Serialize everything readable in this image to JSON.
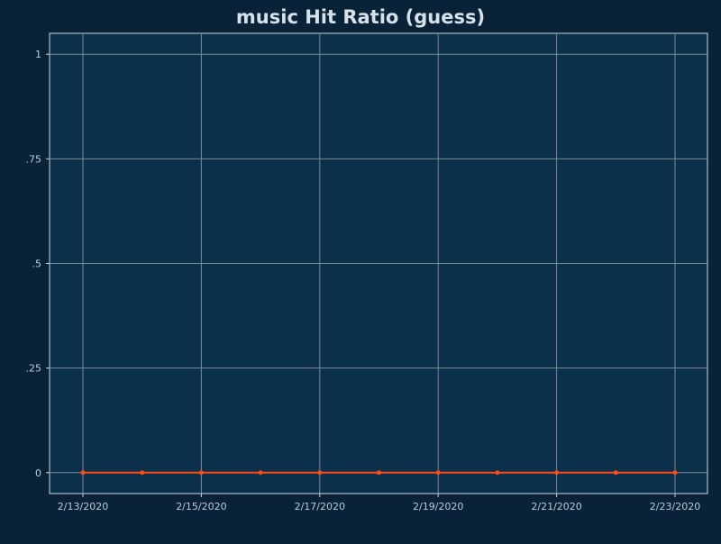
{
  "chart_data": {
    "type": "line",
    "title": "music Hit Ratio (guess)",
    "xlabel": "",
    "ylabel": "",
    "x": [
      "2/13/2020",
      "2/14/2020",
      "2/15/2020",
      "2/16/2020",
      "2/17/2020",
      "2/18/2020",
      "2/19/2020",
      "2/20/2020",
      "2/21/2020",
      "2/22/2020",
      "2/23/2020"
    ],
    "x_tick_labels": [
      "2/13/2020",
      "2/15/2020",
      "2/17/2020",
      "2/19/2020",
      "2/21/2020",
      "2/23/2020"
    ],
    "series": [
      {
        "values": [
          0,
          0,
          0,
          0,
          0,
          0,
          0,
          0,
          0,
          0,
          0
        ]
      }
    ],
    "y_ticks": [
      0,
      0.25,
      0.5,
      0.75,
      1
    ],
    "y_tick_labels": [
      "0",
      ".25",
      ".5",
      ".75",
      "1"
    ],
    "ylim": [
      -0.05,
      1.05
    ],
    "grid": true,
    "legend": "none"
  },
  "colors": {
    "background": "#0a2238",
    "plot_area": "#0b304b",
    "plot_border": "#c7d7e3",
    "grid": "#7d8a95",
    "series_line": "#ff4a12",
    "tick_text": "#b9cad8",
    "title_text": "#d7e1ea"
  }
}
